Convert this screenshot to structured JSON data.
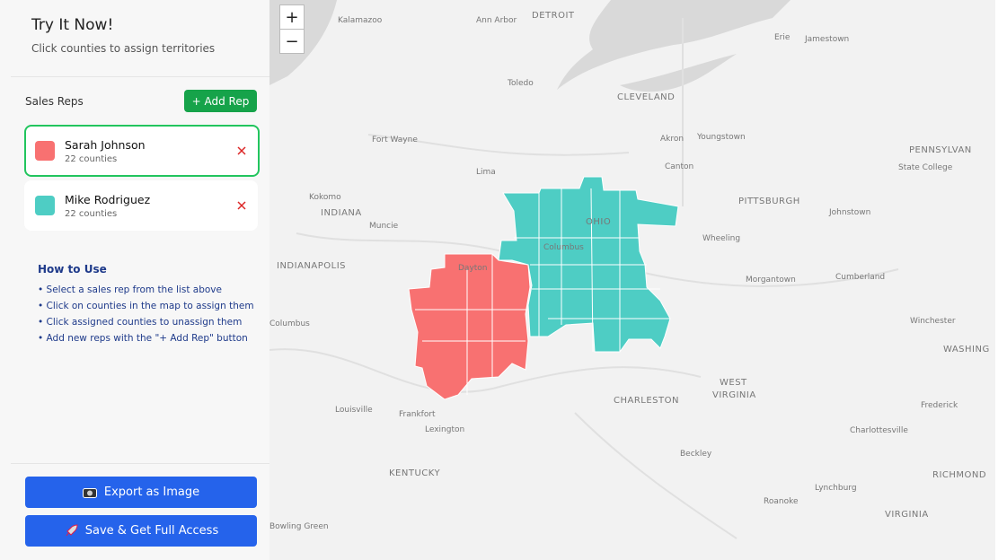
{
  "sidebar": {
    "title": "Try It Now!",
    "subtitle": "Click counties to assign territories",
    "reps_heading": "Sales Reps",
    "add_rep": "+ Add Rep",
    "reps": [
      {
        "name": "Sarah Johnson",
        "count": "22 counties",
        "color": "#f87171"
      },
      {
        "name": "Mike Rodriguez",
        "count": "22 counties",
        "color": "#4ecdc4"
      }
    ],
    "help": {
      "title": "How to Use",
      "items": [
        "• Select a sales rep from the list above",
        "• Click on counties in the map to assign them",
        "• Click assigned counties to unassign them",
        "• Add new reps with the \"+ Add Rep\" button"
      ]
    },
    "export_button": "Export as Image",
    "save_button": "Save & Get Full Access"
  },
  "map": {
    "zoom_in": "+",
    "zoom_out": "−",
    "labels": [
      "Kalamazoo",
      "Ann Arbor",
      "DETROIT",
      "Erie",
      "Jamestown",
      "Toledo",
      "CLEVELAND",
      "Fort Wayne",
      "Akron",
      "Youngstown",
      "PENNSYLVAN",
      "Canton",
      "State College",
      "Lima",
      "Kokomo",
      "INDIANA",
      "PITTSBURGH",
      "Johnstown",
      "Muncie",
      "OHIO",
      "Columbus",
      "Wheeling",
      "INDIANAPOLIS",
      "Dayton",
      "Morgantown",
      "Cumberland",
      "Columbus",
      "Winchester",
      "WASHING",
      "Louisville",
      "Frankfort",
      "CHARLESTON",
      "WEST",
      "VIRGINIA",
      "Frederick",
      "Lexington",
      "Charlottesville",
      "Beckley",
      "KENTUCKY",
      "Lynchburg",
      "RICHMOND",
      "Roanoke",
      "Bowling Green",
      "VIRGINIA"
    ]
  }
}
